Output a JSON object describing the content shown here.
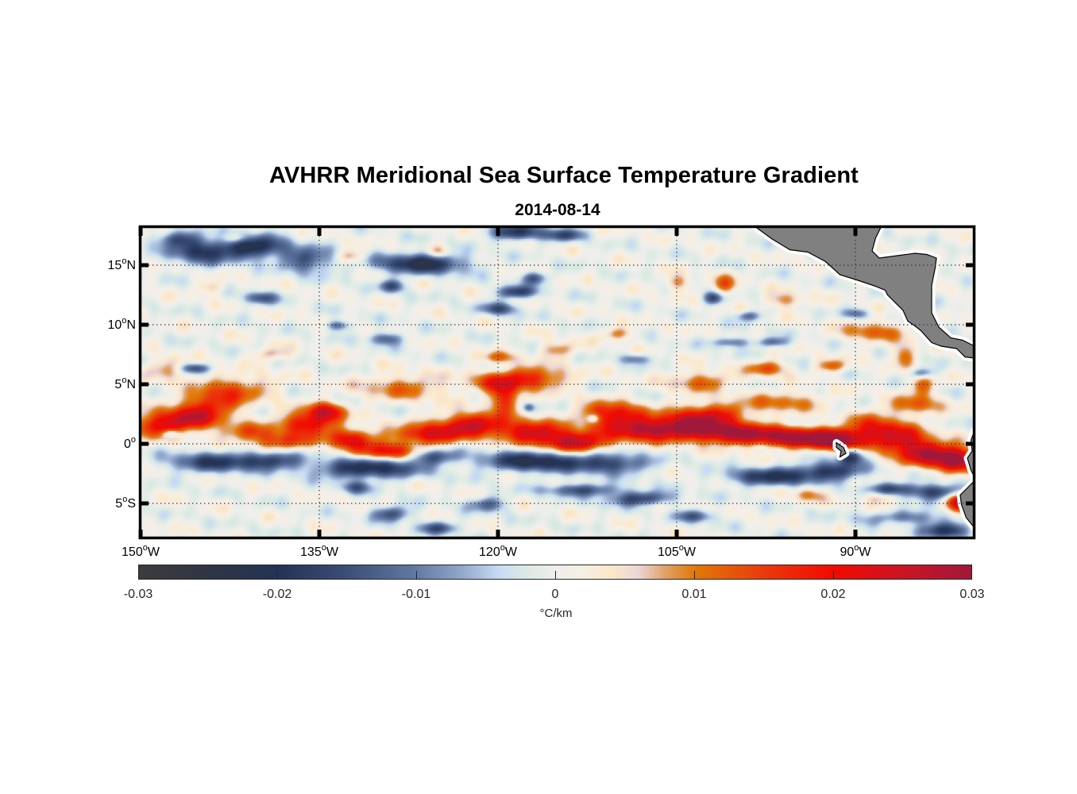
{
  "chart_data": {
    "type": "heatmap",
    "title": "AVHRR Meridional Sea Surface Temperature Gradient",
    "subtitle": "2014-08-14",
    "xlabel": "",
    "ylabel": "",
    "xlim": [
      -150,
      -80
    ],
    "ylim": [
      -8,
      18.2
    ],
    "grid": true,
    "x_ticks": [
      {
        "value": -150,
        "num": "150",
        "hemi": "W"
      },
      {
        "value": -135,
        "num": "135",
        "hemi": "W"
      },
      {
        "value": -120,
        "num": "120",
        "hemi": "W"
      },
      {
        "value": -105,
        "num": "105",
        "hemi": "W"
      },
      {
        "value": -90,
        "num": "90",
        "hemi": "W"
      }
    ],
    "y_ticks": [
      {
        "value": 15,
        "num": "15",
        "hemi": "N"
      },
      {
        "value": 10,
        "num": "10",
        "hemi": "N"
      },
      {
        "value": 5,
        "num": "5",
        "hemi": "N"
      },
      {
        "value": 0,
        "num": "0",
        "hemi": ""
      },
      {
        "value": -5,
        "num": "5",
        "hemi": "S"
      }
    ],
    "degree_symbol": "o",
    "colorbar": {
      "label": "°C/km",
      "clim": [
        -0.03,
        0.03
      ],
      "ticks": [
        -0.03,
        -0.02,
        -0.01,
        0,
        0.01,
        0.02,
        0.03
      ],
      "tick_labels": [
        "-0.03",
        "-0.02",
        "-0.01",
        "0",
        "0.01",
        "0.02",
        "0.03"
      ],
      "colormap": [
        [
          -0.03,
          "#3c3c3e"
        ],
        [
          -0.025,
          "#2f3543"
        ],
        [
          -0.02,
          "#233356"
        ],
        [
          -0.015,
          "#3b4e77"
        ],
        [
          -0.01,
          "#627aa4"
        ],
        [
          -0.007,
          "#8ea3c6"
        ],
        [
          -0.004,
          "#c7dcf4"
        ],
        [
          -0.002,
          "#dcebe2"
        ],
        [
          0,
          "#eeeeec"
        ],
        [
          0.002,
          "#f6efe4"
        ],
        [
          0.004,
          "#fce8c8"
        ],
        [
          0.006,
          "#ecd6d6"
        ],
        [
          0.008,
          "#e0a065"
        ],
        [
          0.01,
          "#e07a08"
        ],
        [
          0.015,
          "#ea3a0c"
        ],
        [
          0.02,
          "#f20a00"
        ],
        [
          0.025,
          "#cc1424"
        ],
        [
          0.03,
          "#a0183a"
        ]
      ]
    },
    "land_color": "#808080",
    "features": [
      {
        "lon": -149,
        "lat": 1.5,
        "v": 0.017,
        "rx": 2.5,
        "ry": 0.9
      },
      {
        "lon": -146,
        "lat": 2.2,
        "v": 0.022,
        "rx": 2.5,
        "ry": 0.9
      },
      {
        "lon": -144,
        "lat": 3.5,
        "v": 0.016,
        "rx": 2.5,
        "ry": 1.0
      },
      {
        "lon": -142,
        "lat": 4.8,
        "v": 0.011,
        "rx": 3.0,
        "ry": 1.0
      },
      {
        "lon": -148,
        "lat": 6.3,
        "v": 0.008,
        "rx": 2.0,
        "ry": 0.8
      },
      {
        "lon": -141,
        "lat": 1.0,
        "v": 0.012,
        "rx": 2.5,
        "ry": 0.8
      },
      {
        "lon": -138,
        "lat": 0.2,
        "v": 0.014,
        "rx": 2.5,
        "ry": 0.7
      },
      {
        "lon": -136,
        "lat": 1.8,
        "v": 0.022,
        "rx": 2.2,
        "ry": 0.9
      },
      {
        "lon": -134.5,
        "lat": 2.8,
        "v": 0.02,
        "rx": 1.5,
        "ry": 0.7
      },
      {
        "lon": -132.5,
        "lat": 0.5,
        "v": 0.019,
        "rx": 2.0,
        "ry": 0.8
      },
      {
        "lon": -129.5,
        "lat": -0.6,
        "v": 0.02,
        "rx": 2.5,
        "ry": 0.7
      },
      {
        "lon": -126,
        "lat": 0.8,
        "v": 0.02,
        "rx": 3.0,
        "ry": 0.8
      },
      {
        "lon": -122,
        "lat": 1.7,
        "v": 0.024,
        "rx": 3.0,
        "ry": 0.9
      },
      {
        "lon": -128,
        "lat": 4.8,
        "v": 0.011,
        "rx": 3.5,
        "ry": 1.0
      },
      {
        "lon": -120.5,
        "lat": 5.3,
        "v": 0.012,
        "rx": 2.0,
        "ry": 0.8
      },
      {
        "lon": -117,
        "lat": 1.0,
        "v": 0.023,
        "rx": 2.5,
        "ry": 0.9
      },
      {
        "lon": -113.5,
        "lat": 0.2,
        "v": 0.026,
        "rx": 2.5,
        "ry": 0.8
      },
      {
        "lon": -117,
        "lat": 5.6,
        "v": 0.018,
        "rx": 2.5,
        "ry": 0.9
      },
      {
        "lon": -119.5,
        "lat": 4.0,
        "v": 0.019,
        "rx": 1.2,
        "ry": 1.2
      },
      {
        "lon": -110.5,
        "lat": 2.5,
        "v": 0.022,
        "rx": 2.5,
        "ry": 1.0
      },
      {
        "lon": -108,
        "lat": 1.2,
        "v": 0.022,
        "rx": 3.0,
        "ry": 0.9
      },
      {
        "lon": -104,
        "lat": 1.5,
        "v": 0.024,
        "rx": 3.0,
        "ry": 1.0
      },
      {
        "lon": -100,
        "lat": 0.9,
        "v": 0.026,
        "rx": 3.0,
        "ry": 0.8
      },
      {
        "lon": -95,
        "lat": 0.6,
        "v": 0.028,
        "rx": 3.0,
        "ry": 0.8
      },
      {
        "lon": -91.5,
        "lat": 0.4,
        "v": 0.028,
        "rx": 2.0,
        "ry": 0.8
      },
      {
        "lon": -102,
        "lat": 2.6,
        "v": 0.016,
        "rx": 3.0,
        "ry": 0.9
      },
      {
        "lon": -96,
        "lat": 3.6,
        "v": 0.011,
        "rx": 3.0,
        "ry": 0.8
      },
      {
        "lon": -88.5,
        "lat": 1.3,
        "v": 0.019,
        "rx": 2.0,
        "ry": 1.2
      },
      {
        "lon": -86,
        "lat": 0.5,
        "v": 0.02,
        "rx": 2.0,
        "ry": 1.0
      },
      {
        "lon": -84,
        "lat": -0.8,
        "v": 0.025,
        "rx": 2.5,
        "ry": 1.0
      },
      {
        "lon": -81.5,
        "lat": -1.3,
        "v": 0.027,
        "rx": 1.5,
        "ry": 0.9
      },
      {
        "lon": -85,
        "lat": 3.3,
        "v": 0.013,
        "rx": 2.0,
        "ry": 0.8
      },
      {
        "lon": -81.5,
        "lat": -4.8,
        "v": 0.026,
        "rx": 1.0,
        "ry": 0.8
      },
      {
        "lon": -97.5,
        "lat": 6.4,
        "v": 0.014,
        "rx": 1.5,
        "ry": 0.6
      },
      {
        "lon": -92,
        "lat": 6.6,
        "v": 0.012,
        "rx": 1.2,
        "ry": 0.5
      },
      {
        "lon": -88.5,
        "lat": 9.5,
        "v": 0.012,
        "rx": 2.5,
        "ry": 0.8
      },
      {
        "lon": -86,
        "lat": 7.5,
        "v": 0.012,
        "rx": 0.9,
        "ry": 0.9
      },
      {
        "lon": -84.5,
        "lat": 5.0,
        "v": 0.012,
        "rx": 1.0,
        "ry": 0.8
      },
      {
        "lon": -101,
        "lat": 13.4,
        "v": 0.012,
        "rx": 1.0,
        "ry": 0.8
      },
      {
        "lon": -105,
        "lat": 13.6,
        "v": 0.01,
        "rx": 1.0,
        "ry": 0.6
      },
      {
        "lon": -96,
        "lat": 12.1,
        "v": 0.01,
        "rx": 1.5,
        "ry": 0.6
      },
      {
        "lon": -110,
        "lat": 9.3,
        "v": 0.01,
        "rx": 1.2,
        "ry": 0.5
      },
      {
        "lon": -115,
        "lat": 8.0,
        "v": 0.01,
        "rx": 1.5,
        "ry": 0.6
      },
      {
        "lon": -120,
        "lat": 7.3,
        "v": 0.011,
        "rx": 1.3,
        "ry": 0.5
      },
      {
        "lon": -132.5,
        "lat": 15.8,
        "v": 0.01,
        "rx": 1.0,
        "ry": 0.5
      },
      {
        "lon": -125,
        "lat": 16.2,
        "v": 0.009,
        "rx": 0.8,
        "ry": 0.5
      },
      {
        "lon": -142,
        "lat": 17.3,
        "v": 0.009,
        "rx": 1.0,
        "ry": 0.4
      },
      {
        "lon": -144,
        "lat": 13.2,
        "v": 0.007,
        "rx": 1.0,
        "ry": 0.5
      },
      {
        "lon": -139,
        "lat": 7.6,
        "v": 0.008,
        "rx": 1.5,
        "ry": 0.5
      },
      {
        "lon": -103,
        "lat": 5.3,
        "v": 0.012,
        "rx": 2.5,
        "ry": 0.8
      },
      {
        "lon": -107.5,
        "lat": -5.0,
        "v": 0.006,
        "rx": 2.0,
        "ry": 0.5
      },
      {
        "lon": -94,
        "lat": -4.2,
        "v": 0.01,
        "rx": 1.2,
        "ry": 0.6
      },
      {
        "lon": -86.5,
        "lat": -6.5,
        "v": 0.01,
        "rx": 1.5,
        "ry": 0.6
      },
      {
        "lon": -88,
        "lat": -4.5,
        "v": 0.009,
        "rx": 1.2,
        "ry": 0.5
      },
      {
        "lon": -145,
        "lat": 16.2,
        "v": -0.018,
        "rx": 2.5,
        "ry": 1.0
      },
      {
        "lon": -140.5,
        "lat": 16.6,
        "v": -0.022,
        "rx": 2.5,
        "ry": 0.9
      },
      {
        "lon": -136,
        "lat": 15.5,
        "v": -0.015,
        "rx": 2.0,
        "ry": 1.0
      },
      {
        "lon": -147,
        "lat": 17.3,
        "v": -0.014,
        "rx": 1.5,
        "ry": 0.6
      },
      {
        "lon": -126.5,
        "lat": 15.2,
        "v": -0.022,
        "rx": 3.5,
        "ry": 0.8
      },
      {
        "lon": -118.5,
        "lat": 17.8,
        "v": -0.02,
        "rx": 2.0,
        "ry": 0.6
      },
      {
        "lon": -114.5,
        "lat": 17.6,
        "v": -0.015,
        "rx": 1.5,
        "ry": 0.5
      },
      {
        "lon": -118.5,
        "lat": 12.8,
        "v": -0.018,
        "rx": 1.5,
        "ry": 0.5
      },
      {
        "lon": -120,
        "lat": 11.4,
        "v": -0.014,
        "rx": 1.5,
        "ry": 0.5
      },
      {
        "lon": -129,
        "lat": 13.3,
        "v": -0.014,
        "rx": 1.0,
        "ry": 0.5
      },
      {
        "lon": -140,
        "lat": 12.3,
        "v": -0.014,
        "rx": 1.3,
        "ry": 0.5
      },
      {
        "lon": -145.5,
        "lat": 6.4,
        "v": -0.014,
        "rx": 1.2,
        "ry": 0.4
      },
      {
        "lon": -129.5,
        "lat": 8.9,
        "v": -0.013,
        "rx": 1.4,
        "ry": 0.5
      },
      {
        "lon": -133.5,
        "lat": 10.0,
        "v": -0.012,
        "rx": 1.0,
        "ry": 0.4
      },
      {
        "lon": -117,
        "lat": 14.0,
        "v": -0.014,
        "rx": 1.0,
        "ry": 0.5
      },
      {
        "lon": -102,
        "lat": 12.3,
        "v": -0.015,
        "rx": 0.8,
        "ry": 0.5
      },
      {
        "lon": -99,
        "lat": 10.8,
        "v": -0.012,
        "rx": 1.0,
        "ry": 0.4
      },
      {
        "lon": -100.5,
        "lat": 8.6,
        "v": -0.012,
        "rx": 1.5,
        "ry": 0.4
      },
      {
        "lon": -144,
        "lat": -1.5,
        "v": -0.017,
        "rx": 3.5,
        "ry": 0.8
      },
      {
        "lon": -139,
        "lat": -1.3,
        "v": -0.016,
        "rx": 2.5,
        "ry": 0.7
      },
      {
        "lon": -131,
        "lat": -2.0,
        "v": -0.022,
        "rx": 4.0,
        "ry": 0.8
      },
      {
        "lon": -125.5,
        "lat": -1.0,
        "v": -0.015,
        "rx": 2.0,
        "ry": 0.6
      },
      {
        "lon": -117,
        "lat": -1.4,
        "v": -0.022,
        "rx": 4.0,
        "ry": 0.8
      },
      {
        "lon": -110.5,
        "lat": -1.6,
        "v": -0.016,
        "rx": 3.0,
        "ry": 0.8
      },
      {
        "lon": -113,
        "lat": -3.8,
        "v": -0.015,
        "rx": 3.0,
        "ry": 0.5
      },
      {
        "lon": -108,
        "lat": -4.6,
        "v": -0.02,
        "rx": 2.5,
        "ry": 0.6
      },
      {
        "lon": -121,
        "lat": -5.0,
        "v": -0.012,
        "rx": 1.5,
        "ry": 0.6
      },
      {
        "lon": -132,
        "lat": -3.6,
        "v": -0.012,
        "rx": 1.2,
        "ry": 0.5
      },
      {
        "lon": -129,
        "lat": -5.8,
        "v": -0.015,
        "rx": 1.5,
        "ry": 0.6
      },
      {
        "lon": -125,
        "lat": -7.0,
        "v": -0.014,
        "rx": 1.5,
        "ry": 0.5
      },
      {
        "lon": -97,
        "lat": -2.7,
        "v": -0.019,
        "rx": 3.5,
        "ry": 0.7
      },
      {
        "lon": -92,
        "lat": -2.2,
        "v": -0.018,
        "rx": 2.5,
        "ry": 0.7
      },
      {
        "lon": -90.5,
        "lat": -1.0,
        "v": -0.02,
        "rx": 1.0,
        "ry": 0.6
      },
      {
        "lon": -83,
        "lat": -4.0,
        "v": -0.018,
        "rx": 2.5,
        "ry": 0.6
      },
      {
        "lon": -87,
        "lat": -3.7,
        "v": -0.015,
        "rx": 2.0,
        "ry": 0.5
      },
      {
        "lon": -86,
        "lat": -6.2,
        "v": -0.016,
        "rx": 3.0,
        "ry": 0.6
      },
      {
        "lon": -82.5,
        "lat": -7.2,
        "v": -0.018,
        "rx": 2.0,
        "ry": 0.6
      },
      {
        "lon": -103.5,
        "lat": -6.0,
        "v": -0.013,
        "rx": 1.5,
        "ry": 0.5
      },
      {
        "lon": -108.5,
        "lat": 7.2,
        "v": -0.01,
        "rx": 1.2,
        "ry": 0.4
      },
      {
        "lon": -97,
        "lat": 8.6,
        "v": -0.012,
        "rx": 1.2,
        "ry": 0.4
      },
      {
        "lon": -84.5,
        "lat": 6.0,
        "v": -0.012,
        "rx": 1.0,
        "ry": 0.4
      },
      {
        "lon": -90,
        "lat": 11.0,
        "v": -0.01,
        "rx": 1.0,
        "ry": 0.4
      },
      {
        "lon": -112,
        "lat": 2.2,
        "v": -0.014,
        "rx": 0.5,
        "ry": 0.4
      },
      {
        "lon": -117.5,
        "lat": 3.1,
        "v": -0.012,
        "rx": 0.5,
        "ry": 0.4
      },
      {
        "lon": -147.5,
        "lat": 0.9,
        "v": -0.013,
        "rx": 0.7,
        "ry": 0.3
      }
    ]
  }
}
